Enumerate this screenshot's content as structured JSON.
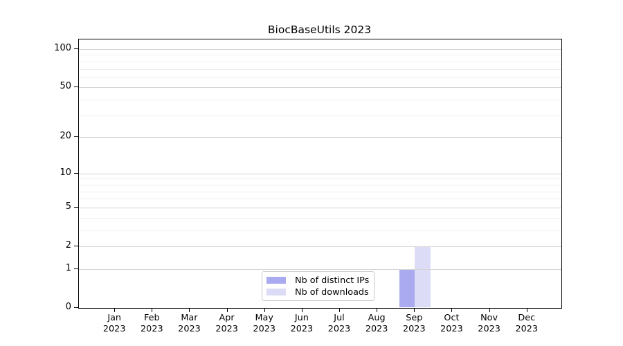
{
  "chart_data": {
    "type": "bar",
    "title": "BiocBaseUtils 2023",
    "categories": [
      "Jan",
      "Feb",
      "Mar",
      "Apr",
      "May",
      "Jun",
      "Jul",
      "Aug",
      "Sep",
      "Oct",
      "Nov",
      "Dec"
    ],
    "category_year": "2023",
    "series": [
      {
        "name": "Nb of distinct IPs",
        "color": "#aaaaf0",
        "values": [
          0,
          0,
          0,
          0,
          0,
          0,
          0,
          0,
          1,
          0,
          0,
          0
        ]
      },
      {
        "name": "Nb of downloads",
        "color": "#dcdcf6",
        "values": [
          0,
          0,
          0,
          0,
          0,
          0,
          0,
          0,
          2,
          0,
          0,
          0
        ]
      }
    ],
    "yscale": "log1p",
    "ylim": [
      0,
      118
    ],
    "y_major_ticks": [
      0,
      1,
      2,
      5,
      10,
      20,
      50,
      100
    ],
    "y_minor_gridlines": [
      3,
      4,
      6,
      7,
      8,
      9,
      30,
      40,
      60,
      70,
      80,
      90
    ],
    "grid": "horizontal",
    "grid_major_color": "#d4d4d4",
    "grid_minor_color": "#efefef",
    "legend_position": "lower center",
    "xlabel": "",
    "ylabel": ""
  }
}
